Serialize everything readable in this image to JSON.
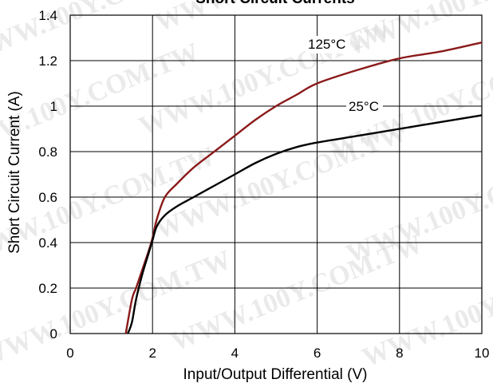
{
  "watermark": "WWW.100Y.COM.TW",
  "chart_data": {
    "type": "line",
    "title": "Short Circuit Currents",
    "xlabel": "Input/Output Differential (V)",
    "ylabel": "Short Circuit Current (A)",
    "xlim": [
      0,
      10
    ],
    "ylim": [
      0,
      1.4
    ],
    "xticks": [
      "0",
      "2",
      "4",
      "6",
      "8",
      "10"
    ],
    "yticks": [
      "0",
      "0.2",
      "0.4",
      "0.6",
      "0.8",
      "1",
      "1.2",
      "1.4"
    ],
    "grid": true,
    "series": [
      {
        "name": "125°C",
        "color": "#8b1a1a",
        "x": [
          1.35,
          1.5,
          1.6,
          1.75,
          1.9,
          2.0,
          2.1,
          2.3,
          2.6,
          3.0,
          3.5,
          4.0,
          4.5,
          5.0,
          5.5,
          6.0,
          7.0,
          8.0,
          9.0,
          10.0
        ],
        "y": [
          0.0,
          0.15,
          0.2,
          0.28,
          0.36,
          0.42,
          0.5,
          0.6,
          0.66,
          0.73,
          0.8,
          0.87,
          0.94,
          1.0,
          1.05,
          1.1,
          1.16,
          1.21,
          1.24,
          1.28
        ]
      },
      {
        "name": "25°C",
        "color": "#000000",
        "x": [
          1.4,
          1.5,
          1.6,
          1.75,
          1.9,
          2.0,
          2.1,
          2.3,
          2.6,
          3.0,
          3.5,
          4.0,
          4.5,
          5.0,
          5.5,
          6.0,
          7.0,
          8.0,
          9.0,
          10.0
        ],
        "y": [
          0.0,
          0.05,
          0.15,
          0.26,
          0.35,
          0.41,
          0.47,
          0.52,
          0.56,
          0.6,
          0.65,
          0.7,
          0.75,
          0.79,
          0.82,
          0.84,
          0.87,
          0.9,
          0.93,
          0.96
        ]
      }
    ],
    "annotations": [
      {
        "text": "125°C",
        "series": "125°C"
      },
      {
        "text": "25°C",
        "series": "25°C"
      }
    ]
  }
}
